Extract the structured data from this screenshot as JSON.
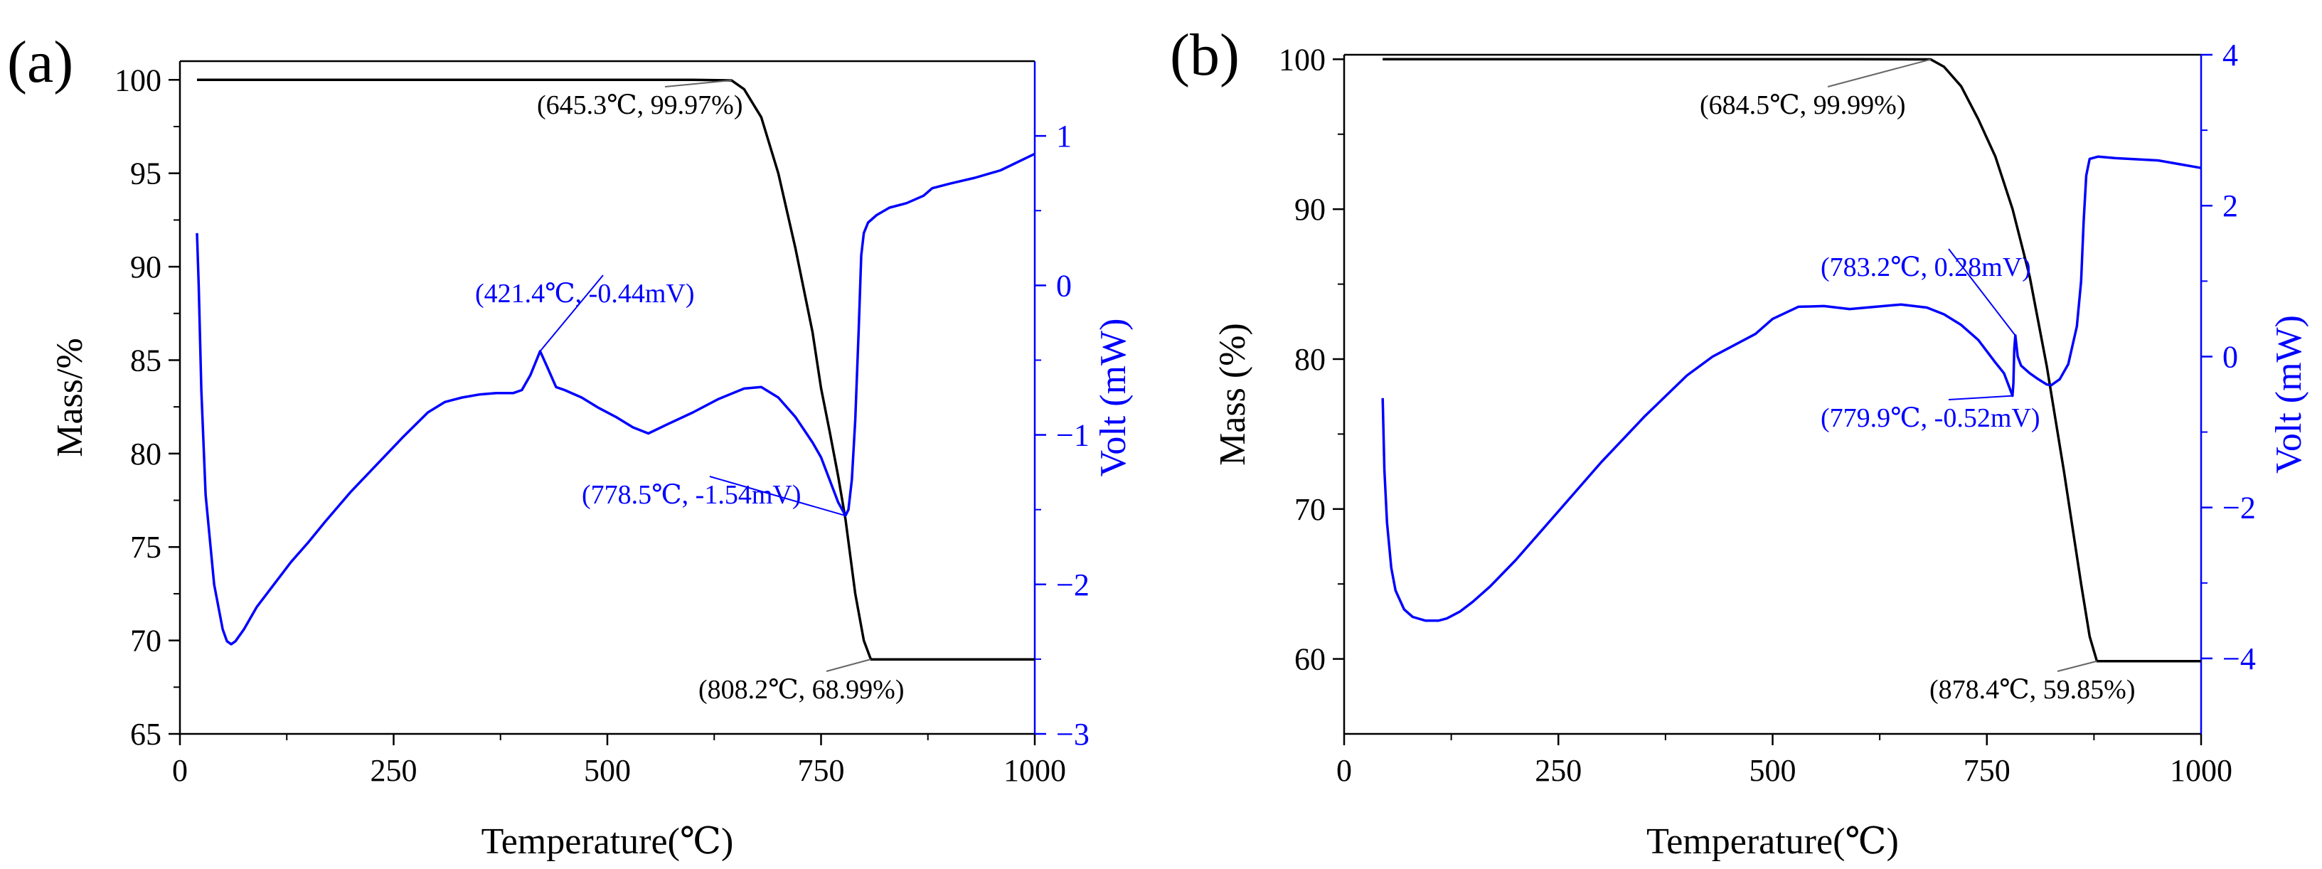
{
  "chart_data": [
    {
      "type": "line",
      "panel_label": "(a)",
      "xlabel": "Temperature(℃)",
      "ylabel_left": "Mass/%",
      "ylabel_right": "Volt (mW)",
      "xlim": [
        0,
        1000
      ],
      "ylim_left": [
        65,
        101
      ],
      "ylim_right": [
        -3,
        1.5
      ],
      "xticks": [
        0,
        250,
        500,
        750,
        1000
      ],
      "yticks_left": [
        65,
        70,
        75,
        80,
        85,
        90,
        95,
        100
      ],
      "yticks_right": [
        -3,
        -2,
        -1,
        0,
        1
      ],
      "ytick_labels_right": [
        "−3",
        "−2",
        "−1",
        "0",
        "1"
      ],
      "grid": false,
      "colors": {
        "mass": "#000000",
        "volt": "#0000ff"
      },
      "series": [
        {
          "axis": "left",
          "x": [
            20,
            100,
            200,
            300,
            400,
            500,
            600,
            645.3,
            660,
            680,
            700,
            720,
            740,
            750,
            760,
            770,
            778.5,
            790,
            800,
            808.2,
            850,
            900,
            950,
            1000
          ],
          "values": [
            100,
            100,
            100,
            100,
            100,
            100,
            100,
            99.97,
            99.5,
            98,
            95,
            91,
            86.5,
            83.5,
            81.2,
            78.8,
            76.5,
            72.5,
            70,
            68.99,
            68.99,
            68.99,
            68.99,
            68.99
          ]
        },
        {
          "axis": "right",
          "x": [
            20,
            22,
            25,
            30,
            40,
            50,
            55,
            60,
            65,
            75,
            90,
            110,
            130,
            150,
            170,
            200,
            230,
            260,
            290,
            310,
            330,
            350,
            370,
            390,
            400,
            410,
            421.4,
            430,
            440,
            450,
            470,
            490,
            510,
            530,
            548,
            570,
            600,
            630,
            660,
            680,
            700,
            720,
            740,
            750,
            760,
            770,
            778.5,
            782,
            786,
            790,
            794,
            797,
            800,
            805,
            815,
            830,
            850,
            870,
            880,
            900,
            930,
            960,
            1000
          ],
          "values": [
            0.35,
            0.0,
            -0.7,
            -1.4,
            -2.0,
            -2.3,
            -2.38,
            -2.4,
            -2.38,
            -2.3,
            -2.15,
            -2.0,
            -1.85,
            -1.72,
            -1.58,
            -1.38,
            -1.2,
            -1.02,
            -0.85,
            -0.78,
            -0.75,
            -0.73,
            -0.72,
            -0.72,
            -0.7,
            -0.6,
            -0.44,
            -0.55,
            -0.68,
            -0.7,
            -0.75,
            -0.82,
            -0.88,
            -0.95,
            -0.99,
            -0.93,
            -0.85,
            -0.76,
            -0.69,
            -0.68,
            -0.75,
            -0.88,
            -1.05,
            -1.15,
            -1.3,
            -1.45,
            -1.54,
            -1.5,
            -1.3,
            -0.9,
            -0.3,
            0.2,
            0.35,
            0.42,
            0.47,
            0.52,
            0.55,
            0.6,
            0.65,
            0.68,
            0.72,
            0.77,
            0.88
          ]
        }
      ],
      "annotations": [
        {
          "text": "(645.3℃, 99.97%)",
          "x": 645.3,
          "y": 99.97,
          "axis": "left",
          "color": "#000000"
        },
        {
          "text": "(808.2℃, 68.99%)",
          "x": 808.2,
          "y": 68.99,
          "axis": "left",
          "color": "#000000"
        },
        {
          "text": "(421.4℃, -0.44mV)",
          "x": 421.4,
          "y": -0.44,
          "axis": "right",
          "color": "#0000ff"
        },
        {
          "text": "(778.5℃, -1.54mV)",
          "x": 778.5,
          "y": -1.54,
          "axis": "right",
          "color": "#0000ff"
        }
      ]
    },
    {
      "type": "line",
      "panel_label": "(b)",
      "xlabel": "Temperature(℃)",
      "ylabel_left": "Mass (%)",
      "ylabel_right": "Volt (mW)",
      "xlim": [
        0,
        1000
      ],
      "ylim_left": [
        55,
        100.3
      ],
      "ylim_right": [
        -5,
        4
      ],
      "xticks": [
        0,
        250,
        500,
        750,
        1000
      ],
      "yticks_left": [
        60,
        70,
        80,
        90,
        100
      ],
      "yticks_right": [
        -4,
        -2,
        0,
        2,
        4
      ],
      "ytick_labels_right": [
        "−4",
        "−2",
        "0",
        "2",
        "4"
      ],
      "grid": false,
      "colors": {
        "mass": "#000000",
        "volt": "#0000ff"
      },
      "series": [
        {
          "axis": "left",
          "x": [
            45,
            100,
            200,
            300,
            400,
            500,
            600,
            684.5,
            700,
            720,
            740,
            760,
            780,
            800,
            820,
            840,
            860,
            870,
            878.4,
            900,
            950,
            1000
          ],
          "values": [
            100,
            100,
            100,
            100,
            100,
            100,
            100,
            99.99,
            99.5,
            98.2,
            96,
            93.5,
            90,
            85.5,
            79.5,
            72.5,
            65,
            61.5,
            59.85,
            59.85,
            59.85,
            59.85
          ]
        },
        {
          "axis": "right",
          "x": [
            45,
            47,
            50,
            55,
            60,
            70,
            80,
            95,
            110,
            120,
            135,
            150,
            170,
            200,
            250,
            300,
            350,
            400,
            430,
            460,
            480,
            500,
            530,
            560,
            590,
            620,
            650,
            680,
            700,
            720,
            740,
            760,
            770,
            776,
            779.9,
            781,
            782,
            783.2,
            786,
            790,
            800,
            810,
            820,
            825,
            835,
            845,
            855,
            860,
            863,
            866,
            870,
            880,
            900,
            950,
            1000
          ],
          "values": [
            -0.55,
            -1.5,
            -2.2,
            -2.8,
            -3.1,
            -3.35,
            -3.45,
            -3.5,
            -3.5,
            -3.47,
            -3.38,
            -3.25,
            -3.05,
            -2.7,
            -2.05,
            -1.4,
            -0.8,
            -0.25,
            0.0,
            0.18,
            0.3,
            0.5,
            0.66,
            0.67,
            0.63,
            0.66,
            0.69,
            0.65,
            0.56,
            0.42,
            0.22,
            -0.08,
            -0.22,
            -0.4,
            -0.52,
            -0.35,
            0.1,
            0.28,
            0.0,
            -0.12,
            -0.22,
            -0.3,
            -0.37,
            -0.38,
            -0.3,
            -0.1,
            0.4,
            1.0,
            1.8,
            2.4,
            2.62,
            2.65,
            2.63,
            2.6,
            2.5
          ]
        }
      ],
      "annotations": [
        {
          "text": "(684.5℃, 99.99%)",
          "x": 684.5,
          "y": 99.99,
          "axis": "left",
          "color": "#000000"
        },
        {
          "text": "(878.4℃, 59.85%)",
          "x": 878.4,
          "y": 59.85,
          "axis": "left",
          "color": "#000000"
        },
        {
          "text": "(783.2℃, 0.28mV)",
          "x": 783.2,
          "y": 0.28,
          "axis": "right",
          "color": "#0000ff"
        },
        {
          "text": "(779.9℃, -0.52mV)",
          "x": 779.9,
          "y": -0.52,
          "axis": "right",
          "color": "#0000ff"
        }
      ]
    }
  ]
}
